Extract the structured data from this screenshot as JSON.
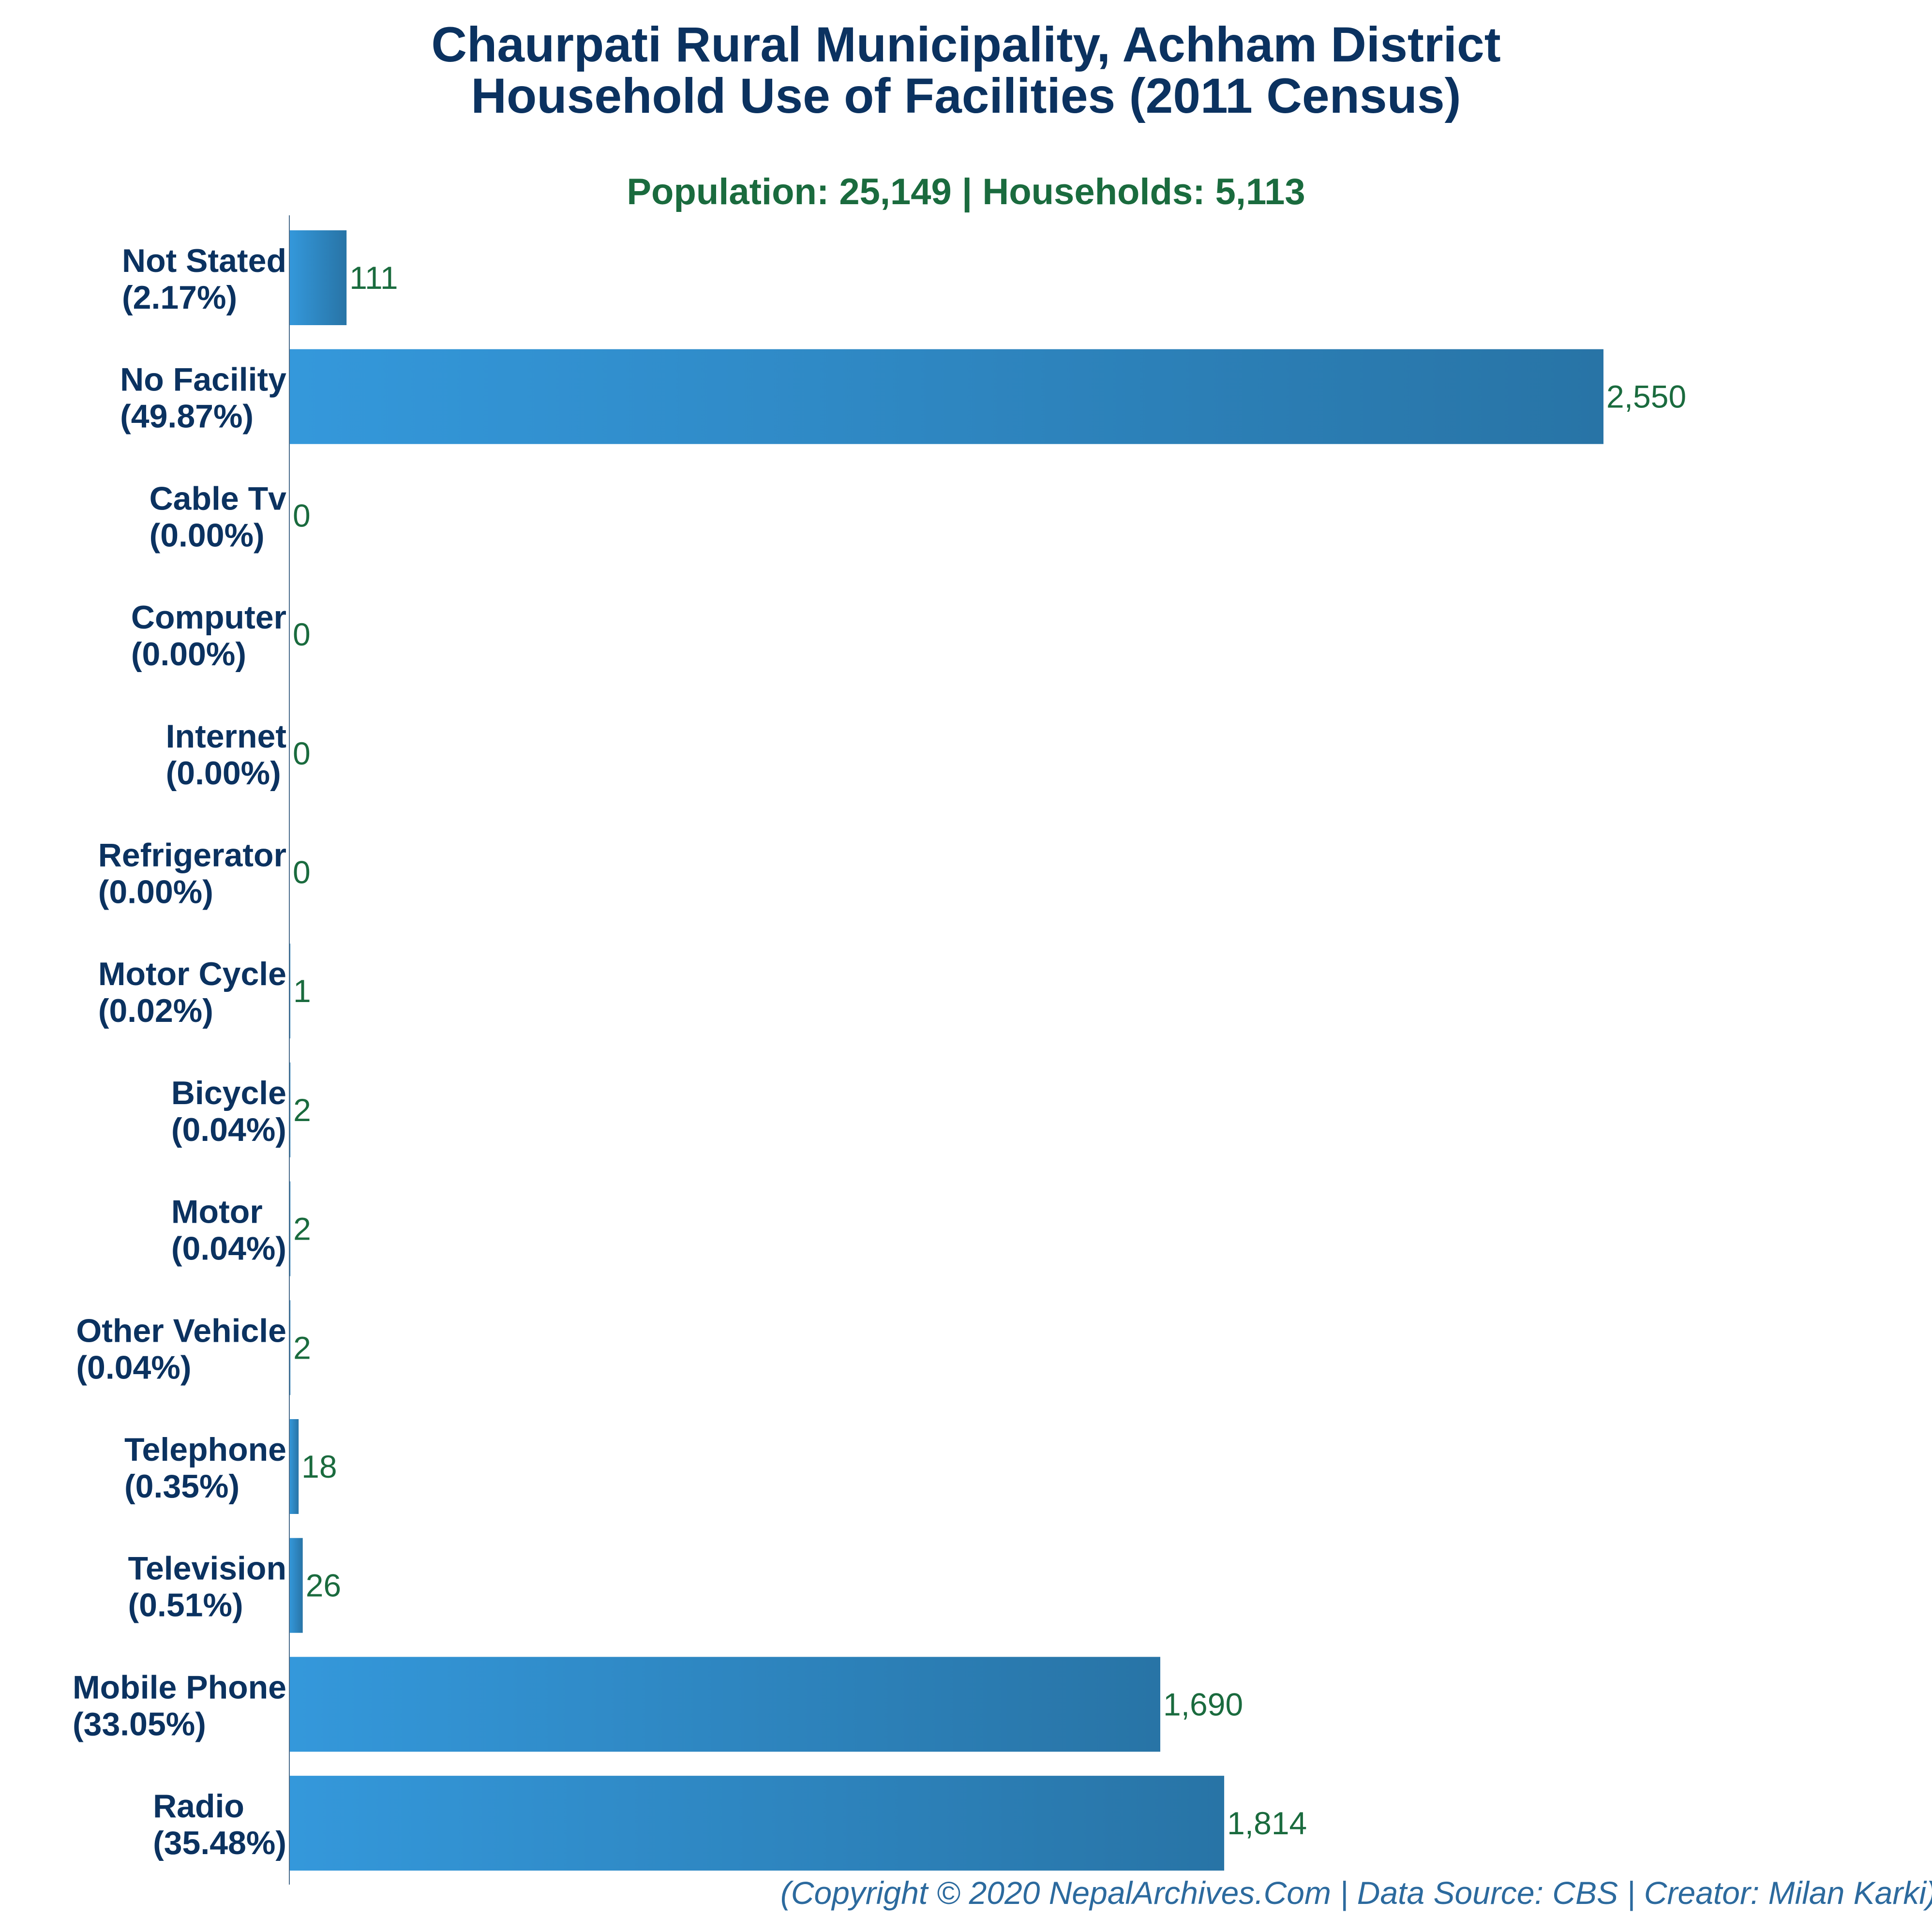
{
  "title_line_1": "Chaurpati Rural Municipality, Achham District",
  "title_line_2": "Household Use of Facilities (2011 Census)",
  "subtitle": "Population: 25,149 | Households: 5,113",
  "copyright": "(Copyright © 2020 NepalArchives.Com | Data Source: CBS | Creator: Milan Karki)",
  "colors": {
    "title": "#0b3260",
    "subtitle": "#1a6b3e",
    "category_label": "#0b3260",
    "value_label": "#1a6b3e",
    "bar_gradient_start": "#3498db",
    "bar_gradient_end": "#2874a6",
    "axis_line": "#4a6d8c",
    "copyright": "#2c6a9e"
  },
  "chart_data": {
    "type": "bar",
    "orientation": "horizontal",
    "title": "Chaurpati Rural Municipality, Achham District Household Use of Facilities (2011 Census)",
    "subtitle": "Population: 25,149 | Households: 5,113",
    "xlabel": "",
    "ylabel": "",
    "xlim": [
      0,
      2550
    ],
    "grid": false,
    "legend": "none",
    "categories": [
      "Not Stated",
      "No Facility",
      "Cable Tv",
      "Computer",
      "Internet",
      "Refrigerator",
      "Motor Cycle",
      "Bicycle",
      "Motor",
      "Other Vehicle",
      "Telephone",
      "Television",
      "Mobile Phone",
      "Radio"
    ],
    "percent_labels": [
      "(2.17%)",
      "(49.87%)",
      "(0.00%)",
      "(0.00%)",
      "(0.00%)",
      "(0.00%)",
      "(0.02%)",
      "(0.04%)",
      "(0.04%)",
      "(0.04%)",
      "(0.35%)",
      "(0.51%)",
      "(33.05%)",
      "(35.48%)"
    ],
    "values": [
      111,
      2550,
      0,
      0,
      0,
      0,
      1,
      2,
      2,
      2,
      18,
      26,
      1690,
      1814
    ],
    "value_labels": [
      "111",
      "2,550",
      "0",
      "0",
      "0",
      "0",
      "1",
      "2",
      "2",
      "2",
      "18",
      "26",
      "1,690",
      "1,814"
    ]
  }
}
